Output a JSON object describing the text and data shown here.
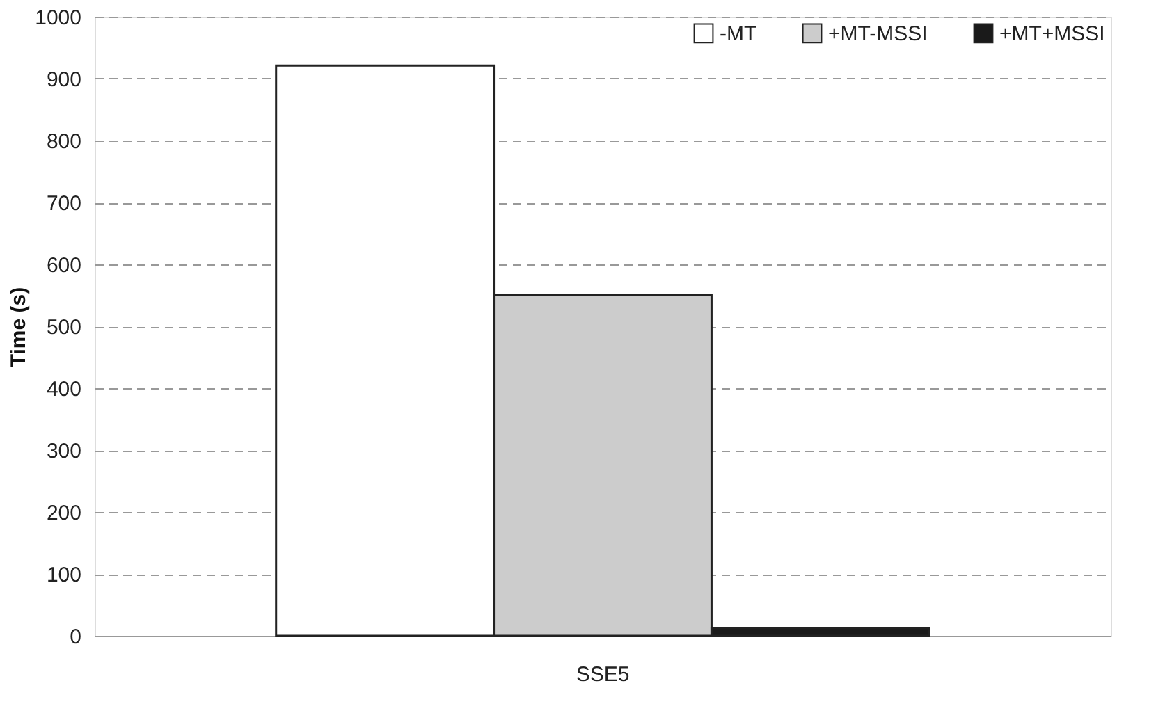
{
  "chart_data": {
    "type": "bar",
    "ylabel": "Time (s)",
    "categories": [
      "SSE5"
    ],
    "series": [
      {
        "name": "-MT",
        "color": "#ffffff",
        "values": [
          921
        ]
      },
      {
        "name": "+MT-MSSI",
        "color": "#cccccc",
        "values": [
          551
        ]
      },
      {
        "name": "+MT+MSSI",
        "color": "#1a1a1a",
        "values": [
          12
        ]
      }
    ],
    "ylim": [
      0,
      1000
    ],
    "yticks": [
      0,
      100,
      200,
      300,
      400,
      500,
      600,
      700,
      800,
      900,
      1000
    ],
    "grid": "y",
    "legend": "top right"
  }
}
